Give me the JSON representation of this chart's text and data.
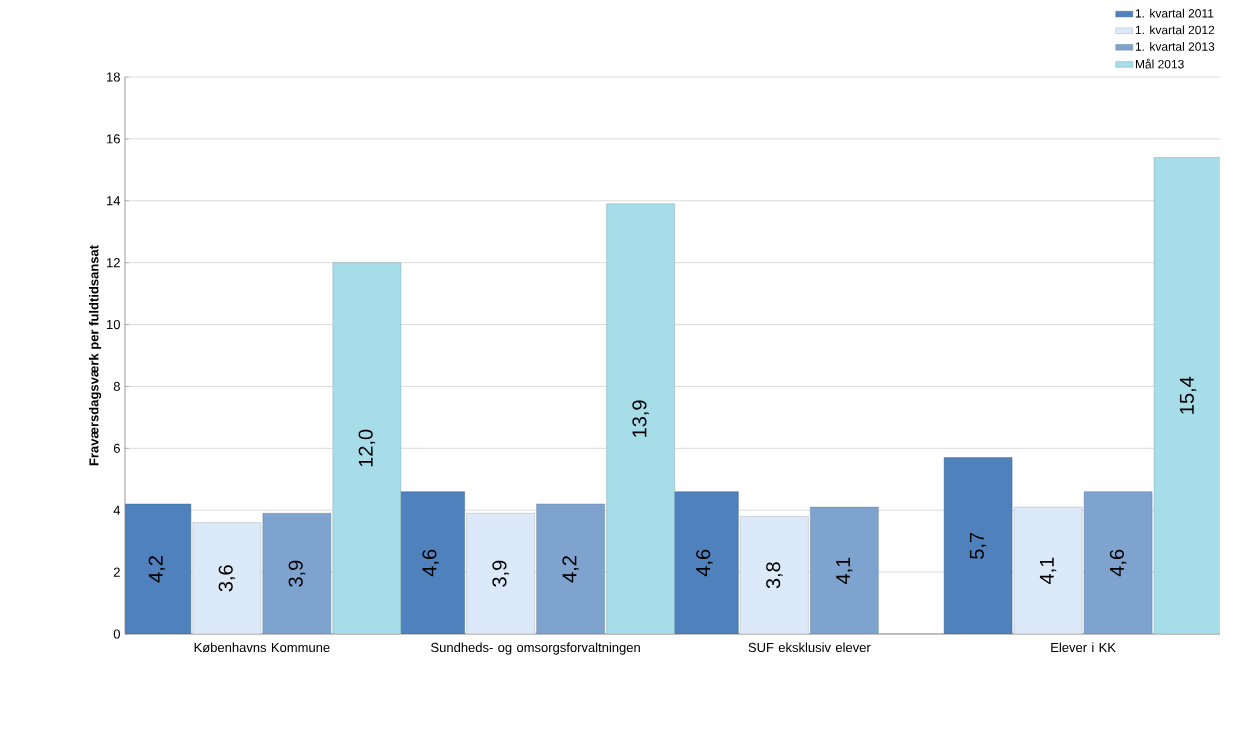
{
  "chart_data": {
    "type": "bar",
    "ylabel": "Fraværsdagsværk per fuldtidsansat",
    "categories": [
      "Københavns Kommune",
      "Sundheds- og omsorgsforvaltningen",
      "SUF eksklusiv elever",
      "Elever i KK"
    ],
    "series": [
      {
        "name": "1. kvartal 2011",
        "color": "#4f81bd",
        "values": [
          4.2,
          4.6,
          4.6,
          5.7
        ],
        "value_labels": [
          "4,2",
          "4,6",
          "4,6",
          "5,7"
        ]
      },
      {
        "name": "1. kvartal 2012",
        "color": "#dce9f8",
        "values": [
          3.6,
          3.9,
          3.8,
          4.1
        ],
        "value_labels": [
          "3,6",
          "3,9",
          "3,8",
          "4,1"
        ]
      },
      {
        "name": "1. kvartal 2013",
        "color": "#7ea3cf",
        "values": [
          3.9,
          4.2,
          4.1,
          4.6
        ],
        "value_labels": [
          "3,9",
          "4,2",
          "4,1",
          "4,6"
        ]
      },
      {
        "name": "Mål 2013",
        "color": "#a6dde9",
        "values": [
          12.0,
          13.9,
          null,
          15.4
        ],
        "value_labels": [
          "12,0",
          "13,9",
          null,
          "15,4"
        ]
      }
    ],
    "ylim": [
      0,
      18
    ],
    "yticks": [
      0,
      2,
      4,
      6,
      8,
      10,
      12,
      14,
      16,
      18
    ],
    "grid": "y",
    "legend": "top right"
  }
}
